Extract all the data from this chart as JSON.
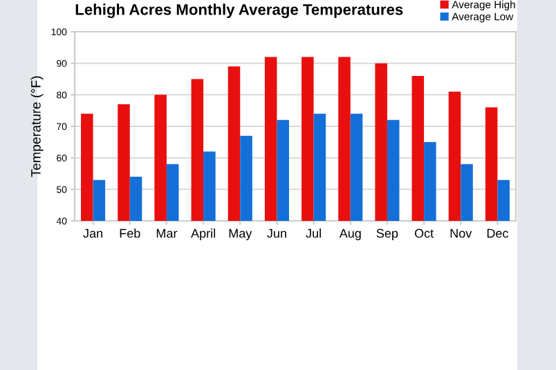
{
  "chart_data": {
    "type": "bar",
    "title": "Lehigh Acres Monthly Average Temperatures",
    "ylabel": "Temperature (°F)",
    "categories": [
      "Jan",
      "Feb",
      "Mar",
      "April",
      "May",
      "Jun",
      "Jul",
      "Aug",
      "Sep",
      "Oct",
      "Nov",
      "Dec"
    ],
    "series": [
      {
        "name": "Average High",
        "color": "#e8100f",
        "values": [
          74,
          77,
          80,
          85,
          89,
          92,
          92,
          92,
          90,
          86,
          81,
          76
        ]
      },
      {
        "name": "Average Low",
        "color": "#1470d8",
        "values": [
          53,
          54,
          58,
          62,
          67,
          72,
          74,
          74,
          72,
          65,
          58,
          53
        ]
      }
    ],
    "ylim": [
      40,
      100
    ],
    "yticks": [
      40,
      50,
      60,
      70,
      80,
      90,
      100
    ],
    "grid": "y",
    "legend": "top right"
  }
}
